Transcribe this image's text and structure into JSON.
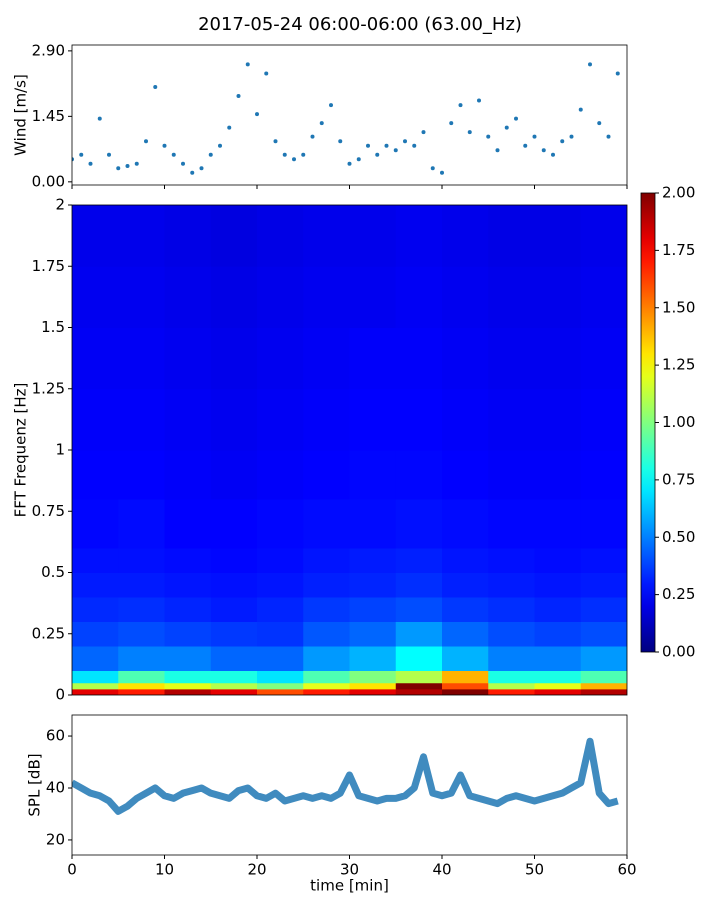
{
  "chart_data": [
    {
      "type": "scatter",
      "title": "2017-05-24 06:00-06:00 (63.00_Hz)",
      "ylabel": "Wind [m/s]",
      "color": "#1f77b4",
      "x": [
        0,
        1,
        2,
        3,
        4,
        5,
        6,
        7,
        8,
        9,
        10,
        11,
        12,
        13,
        14,
        15,
        16,
        17,
        18,
        19,
        20,
        21,
        22,
        23,
        24,
        25,
        26,
        27,
        28,
        29,
        30,
        31,
        32,
        33,
        34,
        35,
        36,
        37,
        38,
        39,
        40,
        41,
        42,
        43,
        44,
        45,
        46,
        47,
        48,
        49,
        50,
        51,
        52,
        53,
        54,
        55,
        56,
        57,
        58,
        59
      ],
      "values": [
        0.5,
        0.6,
        0.4,
        1.4,
        0.6,
        0.3,
        0.35,
        0.4,
        0.9,
        2.1,
        0.8,
        0.6,
        0.4,
        0.2,
        0.3,
        0.6,
        0.8,
        1.2,
        1.9,
        2.6,
        1.5,
        2.4,
        0.9,
        0.6,
        0.5,
        0.6,
        1.0,
        1.3,
        1.7,
        0.9,
        0.4,
        0.5,
        0.8,
        0.6,
        0.8,
        0.7,
        0.9,
        0.8,
        1.1,
        0.3,
        0.2,
        1.3,
        1.7,
        1.1,
        1.8,
        1.0,
        0.7,
        1.2,
        1.4,
        0.8,
        1.0,
        0.7,
        0.6,
        0.9,
        1.0,
        1.6,
        2.6,
        1.3,
        1.0,
        2.4
      ],
      "xlim": [
        0,
        60
      ],
      "ylim": [
        -0.07,
        3.03
      ],
      "yticks": [
        {
          "value": 0,
          "label": "0.00"
        },
        {
          "value": 1.45,
          "label": "1.45"
        },
        {
          "value": 2.9,
          "label": "2.90"
        }
      ]
    },
    {
      "type": "heatmap",
      "ylabel": "FFT Frequenz [Hz]",
      "cmap": "jet",
      "x_edges": [
        0,
        5,
        10,
        15,
        20,
        25,
        30,
        35,
        40,
        45,
        50,
        55,
        60
      ],
      "y_edges": [
        0,
        0.025,
        0.05,
        0.1,
        0.2,
        0.3,
        0.4,
        0.5,
        0.6,
        0.8,
        1.0,
        1.25,
        1.5,
        1.75,
        2
      ],
      "z": [
        [
          1.8,
          1.7,
          1.9,
          1.8,
          1.6,
          1.7,
          1.8,
          1.9,
          2.0,
          1.7,
          1.8,
          1.9
        ],
        [
          1.1,
          1.3,
          1.2,
          1.1,
          1.0,
          1.2,
          1.3,
          2.0,
          1.6,
          1.1,
          1.2,
          1.4
        ],
        [
          0.7,
          0.9,
          0.8,
          0.8,
          0.7,
          0.9,
          1.0,
          1.1,
          1.4,
          0.8,
          0.8,
          0.9
        ],
        [
          0.45,
          0.5,
          0.5,
          0.45,
          0.45,
          0.55,
          0.6,
          0.75,
          0.6,
          0.5,
          0.5,
          0.55
        ],
        [
          0.38,
          0.4,
          0.38,
          0.36,
          0.35,
          0.42,
          0.45,
          0.55,
          0.45,
          0.4,
          0.38,
          0.4
        ],
        [
          0.33,
          0.34,
          0.32,
          0.3,
          0.32,
          0.36,
          0.38,
          0.4,
          0.36,
          0.34,
          0.32,
          0.34
        ],
        [
          0.3,
          0.3,
          0.29,
          0.28,
          0.29,
          0.31,
          0.32,
          0.34,
          0.31,
          0.3,
          0.29,
          0.3
        ],
        [
          0.28,
          0.28,
          0.27,
          0.26,
          0.27,
          0.29,
          0.3,
          0.31,
          0.29,
          0.28,
          0.27,
          0.28
        ],
        [
          0.26,
          0.27,
          0.25,
          0.25,
          0.26,
          0.27,
          0.27,
          0.28,
          0.27,
          0.26,
          0.26,
          0.26
        ],
        [
          0.25,
          0.25,
          0.24,
          0.23,
          0.24,
          0.25,
          0.26,
          0.26,
          0.25,
          0.24,
          0.24,
          0.25
        ],
        [
          0.24,
          0.24,
          0.23,
          0.22,
          0.23,
          0.24,
          0.25,
          0.25,
          0.24,
          0.23,
          0.23,
          0.24
        ],
        [
          0.23,
          0.23,
          0.22,
          0.21,
          0.22,
          0.23,
          0.24,
          0.24,
          0.23,
          0.22,
          0.22,
          0.23
        ],
        [
          0.22,
          0.22,
          0.21,
          0.2,
          0.21,
          0.22,
          0.22,
          0.23,
          0.22,
          0.21,
          0.21,
          0.22
        ],
        [
          0.21,
          0.21,
          0.2,
          0.19,
          0.2,
          0.21,
          0.21,
          0.22,
          0.21,
          0.2,
          0.2,
          0.21
        ]
      ],
      "xlim": [
        0,
        60
      ],
      "ylim": [
        0,
        2
      ],
      "yticks": [
        0,
        0.25,
        0.5,
        0.75,
        1,
        1.25,
        1.5,
        1.75,
        2
      ],
      "clim": [
        0,
        2
      ],
      "cticks": [
        {
          "value": 0,
          "label": "0.00"
        },
        {
          "value": 0.25,
          "label": "0.25"
        },
        {
          "value": 0.5,
          "label": "0.50"
        },
        {
          "value": 0.75,
          "label": "0.75"
        },
        {
          "value": 1,
          "label": "1.00"
        },
        {
          "value": 1.25,
          "label": "1.25"
        },
        {
          "value": 1.5,
          "label": "1.50"
        },
        {
          "value": 1.75,
          "label": "1.75"
        },
        {
          "value": 2,
          "label": "2.00"
        }
      ]
    },
    {
      "type": "line",
      "xlabel": "time [min]",
      "ylabel": "SPL [dB]",
      "color": "#1f77b4",
      "x": [
        0,
        1,
        2,
        3,
        4,
        5,
        6,
        7,
        8,
        9,
        10,
        11,
        12,
        13,
        14,
        15,
        16,
        17,
        18,
        19,
        20,
        21,
        22,
        23,
        24,
        25,
        26,
        27,
        28,
        29,
        30,
        31,
        32,
        33,
        34,
        35,
        36,
        37,
        38,
        39,
        40,
        41,
        42,
        43,
        44,
        45,
        46,
        47,
        48,
        49,
        50,
        51,
        52,
        53,
        54,
        55,
        56,
        57,
        58,
        59
      ],
      "values": [
        42,
        40,
        38,
        37,
        35,
        31,
        33,
        36,
        38,
        40,
        37,
        36,
        38,
        39,
        40,
        38,
        37,
        36,
        39,
        40,
        37,
        36,
        38,
        35,
        36,
        37,
        36,
        37,
        36,
        38,
        45,
        37,
        36,
        35,
        36,
        36,
        37,
        40,
        52,
        38,
        37,
        38,
        45,
        37,
        36,
        35,
        34,
        36,
        37,
        36,
        35,
        36,
        37,
        38,
        40,
        42,
        58,
        38,
        34,
        35
      ],
      "xlim": [
        0,
        60
      ],
      "ylim": [
        14.2,
        68.1
      ],
      "xticks": [
        0,
        10,
        20,
        30,
        40,
        50,
        60
      ],
      "yticks": [
        20,
        40,
        60
      ]
    }
  ]
}
